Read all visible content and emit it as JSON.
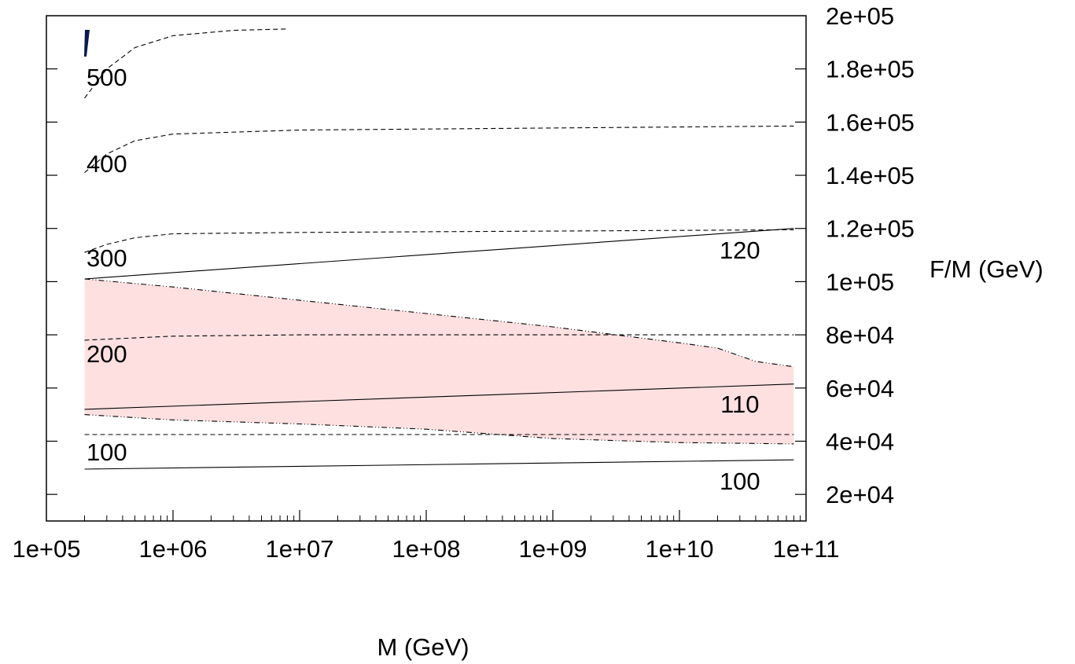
{
  "chart_data": {
    "type": "line",
    "title": "",
    "xlabel": "M  (GeV)",
    "ylabel": "F/M  (GeV)",
    "xscale": "log",
    "xlim": [
      100000,
      100000000000
    ],
    "ylim": [
      10000,
      200000
    ],
    "x_tick_labels": [
      "1e+05",
      "1e+06",
      "1e+07",
      "1e+08",
      "1e+09",
      "1e+10",
      "1e+11"
    ],
    "y_tick_labels": [
      "2e+04",
      "4e+04",
      "6e+04",
      "8e+04",
      "1e+05",
      "1.2e+05",
      "1.4e+05",
      "1.6e+05",
      "1.8e+05",
      "2e+05"
    ],
    "y_axis_side": "right",
    "grid": false,
    "shaded_region": {
      "color": "#ffe0e0",
      "upper": [
        [
          200000,
          101000
        ],
        [
          1000000,
          98000
        ],
        [
          10000000,
          93000
        ],
        [
          100000000,
          88000
        ],
        [
          1000000000,
          83000
        ],
        [
          10000000000,
          77000
        ],
        [
          20000000000,
          75000
        ],
        [
          40000000000,
          70000
        ],
        [
          80000000000,
          68000
        ]
      ],
      "lower": [
        [
          200000,
          50000
        ],
        [
          1000000,
          48000
        ],
        [
          10000000,
          46500
        ],
        [
          100000000,
          44500
        ],
        [
          1000000000,
          41000
        ],
        [
          10000000000,
          39500
        ],
        [
          80000000000,
          39000
        ]
      ]
    },
    "series": [
      {
        "label": "100",
        "style": "solid",
        "points": [
          [
            200000,
            29500
          ],
          [
            80000000000,
            33000
          ]
        ]
      },
      {
        "label": "110",
        "style": "solid",
        "points": [
          [
            200000,
            52000
          ],
          [
            80000000000,
            61500
          ]
        ]
      },
      {
        "label": "120",
        "style": "solid",
        "points": [
          [
            200000,
            101000
          ],
          [
            80000000000,
            120000
          ]
        ]
      },
      {
        "label": "100",
        "style": "dashed",
        "points": [
          [
            200000,
            42500
          ],
          [
            80000000000,
            42500
          ]
        ]
      },
      {
        "label": "200",
        "style": "dashed",
        "points": [
          [
            200000,
            78000
          ],
          [
            1000000,
            79500
          ],
          [
            10000000,
            80000
          ],
          [
            80000000000,
            80000
          ]
        ]
      },
      {
        "label": "300",
        "style": "dashed",
        "points": [
          [
            200000,
            111000
          ],
          [
            300000,
            114000
          ],
          [
            500000,
            116500
          ],
          [
            1000000,
            118000
          ],
          [
            10000000,
            118500
          ],
          [
            80000000000,
            119500
          ]
        ]
      },
      {
        "label": "400",
        "style": "dashed",
        "points": [
          [
            200000,
            141000
          ],
          [
            300000,
            148000
          ],
          [
            500000,
            153000
          ],
          [
            1000000,
            155500
          ],
          [
            10000000,
            157000
          ],
          [
            80000000000,
            158500
          ]
        ]
      },
      {
        "label": "500",
        "style": "dashed",
        "points": [
          [
            200000,
            169000
          ],
          [
            300000,
            180000
          ],
          [
            500000,
            188000
          ],
          [
            1000000,
            192500
          ],
          [
            3000000,
            194500
          ],
          [
            8000000,
            195000
          ]
        ]
      },
      {
        "label": "",
        "style": "dashdot",
        "points": [
          [
            200000,
            101000
          ],
          [
            1000000,
            98000
          ],
          [
            10000000,
            93000
          ],
          [
            100000000,
            88000
          ],
          [
            1000000000,
            83000
          ],
          [
            10000000000,
            77000
          ],
          [
            20000000000,
            75000
          ],
          [
            40000000000,
            70000
          ],
          [
            80000000000,
            68000
          ]
        ]
      },
      {
        "label": "",
        "style": "dashdot",
        "points": [
          [
            200000,
            50000
          ],
          [
            1000000,
            48000
          ],
          [
            10000000,
            46500
          ],
          [
            100000000,
            44500
          ],
          [
            1000000000,
            41000
          ],
          [
            10000000000,
            39500
          ],
          [
            80000000000,
            39000
          ]
        ]
      }
    ],
    "contour_labels": [
      {
        "text": "500",
        "x": 300000,
        "y": 177000
      },
      {
        "text": "400",
        "x": 300000,
        "y": 144500
      },
      {
        "text": "300",
        "x": 300000,
        "y": 109000
      },
      {
        "text": "200",
        "x": 300000,
        "y": 73000
      },
      {
        "text": "100",
        "x": 300000,
        "y": 36000
      },
      {
        "text": "120",
        "x": 30000000000,
        "y": 112000
      },
      {
        "text": "110",
        "x": 30000000000,
        "y": 54000
      },
      {
        "text": "100",
        "x": 30000000000,
        "y": 25000
      }
    ]
  }
}
